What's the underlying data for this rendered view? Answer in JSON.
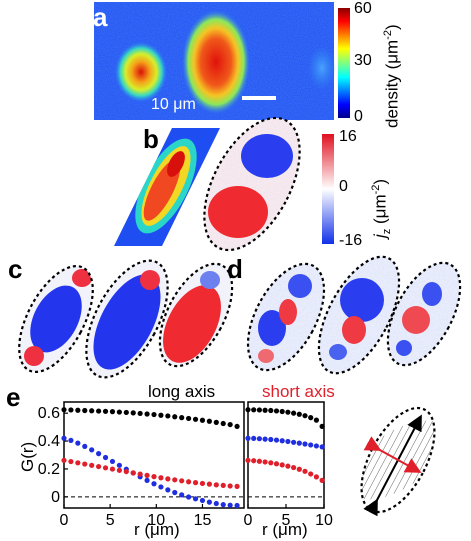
{
  "panels": {
    "a": {
      "label": "a",
      "scalebar": "10 μm",
      "colorbar": {
        "ticks": [
          "60",
          "30",
          "0"
        ],
        "label": "density (μm",
        "label_sup": "-2",
        "label_end": ")"
      }
    },
    "b": {
      "label": "b",
      "colorbar": {
        "ticks": [
          "16",
          "0",
          "-16"
        ],
        "label_main": "j",
        "label_sub": "z",
        "label_mid": " (μm",
        "label_sup": "-2",
        "label_end": ")"
      }
    },
    "c": {
      "label": "c"
    },
    "d": {
      "label": "d"
    },
    "e": {
      "label": "e"
    }
  },
  "chart_data": [
    {
      "type": "scatter",
      "title": "long axis",
      "xlabel": "r (μm)",
      "ylabel": "G(r)",
      "xlim": [
        0,
        19.5
      ],
      "ylim": [
        -0.08,
        0.68
      ],
      "xticks": [
        0,
        5,
        10,
        15
      ],
      "yticks": [
        0,
        0.2,
        0.4,
        0.6
      ],
      "ytick_labels": [
        "0",
        "0.2",
        "0.4",
        "0.6"
      ],
      "reference_line": {
        "y": 0,
        "style": "dashed"
      },
      "series": [
        {
          "color": "#000000",
          "x": [
            0,
            0.75,
            1.5,
            2.25,
            3,
            3.75,
            4.5,
            5.25,
            6,
            6.75,
            7.5,
            8.25,
            9,
            9.75,
            10.5,
            11.25,
            12,
            12.75,
            13.5,
            14.25,
            15,
            15.75,
            16.5,
            17.25,
            18,
            18.75
          ],
          "y": [
            0.625,
            0.623,
            0.621,
            0.619,
            0.617,
            0.615,
            0.613,
            0.611,
            0.608,
            0.605,
            0.602,
            0.598,
            0.594,
            0.59,
            0.585,
            0.58,
            0.574,
            0.568,
            0.562,
            0.556,
            0.549,
            0.542,
            0.534,
            0.526,
            0.518,
            0.505
          ]
        },
        {
          "color": "#1f2fe0",
          "x": [
            0,
            0.75,
            1.5,
            2.25,
            3,
            3.75,
            4.5,
            5.25,
            6,
            6.75,
            7.5,
            8.25,
            9,
            9.75,
            10.5,
            11.25,
            12,
            12.75,
            13.5,
            14.25,
            15,
            15.75,
            16.5,
            17.25,
            18,
            18.75
          ],
          "y": [
            0.42,
            0.405,
            0.385,
            0.362,
            0.337,
            0.31,
            0.282,
            0.254,
            0.226,
            0.198,
            0.171,
            0.144,
            0.118,
            0.094,
            0.071,
            0.05,
            0.031,
            0.014,
            -0.001,
            -0.014,
            -0.026,
            -0.038,
            -0.048,
            -0.056,
            -0.06,
            -0.062
          ]
        },
        {
          "color": "#e01f2a",
          "x": [
            0,
            0.75,
            1.5,
            2.25,
            3,
            3.75,
            4.5,
            5.25,
            6,
            6.75,
            7.5,
            8.25,
            9,
            9.75,
            10.5,
            11.25,
            12,
            12.75,
            13.5,
            14.25,
            15,
            15.75,
            16.5,
            17.25,
            18,
            18.75
          ],
          "y": [
            0.262,
            0.253,
            0.244,
            0.235,
            0.226,
            0.217,
            0.208,
            0.199,
            0.19,
            0.181,
            0.172,
            0.163,
            0.154,
            0.145,
            0.137,
            0.129,
            0.122,
            0.115,
            0.108,
            0.102,
            0.096,
            0.091,
            0.086,
            0.082,
            0.078,
            0.075
          ]
        }
      ]
    },
    {
      "type": "scatter",
      "title": "short axis",
      "title_color": "#e01f2a",
      "xlabel": "r (μm)",
      "xlim": [
        0,
        10
      ],
      "ylim": [
        -0.08,
        0.68
      ],
      "xticks": [
        0,
        5,
        10
      ],
      "reference_line": {
        "y": 0,
        "style": "dashed"
      },
      "series": [
        {
          "color": "#000000",
          "x": [
            0,
            0.75,
            1.5,
            2.25,
            3,
            3.75,
            4.5,
            5.25,
            6,
            6.75,
            7.5,
            8.25,
            9,
            9.75
          ],
          "y": [
            0.625,
            0.624,
            0.623,
            0.621,
            0.619,
            0.616,
            0.612,
            0.607,
            0.6,
            0.592,
            0.582,
            0.568,
            0.55,
            0.505
          ]
        },
        {
          "color": "#1f2fe0",
          "x": [
            0,
            0.75,
            1.5,
            2.25,
            3,
            3.75,
            4.5,
            5.25,
            6,
            6.75,
            7.5,
            8.25,
            9,
            9.75
          ],
          "y": [
            0.42,
            0.419,
            0.417,
            0.414,
            0.411,
            0.407,
            0.402,
            0.397,
            0.391,
            0.385,
            0.379,
            0.372,
            0.365,
            0.358
          ]
        },
        {
          "color": "#e01f2a",
          "x": [
            0,
            0.75,
            1.5,
            2.25,
            3,
            3.75,
            4.5,
            5.25,
            6,
            6.75,
            7.5,
            8.25,
            9,
            9.75
          ],
          "y": [
            0.262,
            0.259,
            0.255,
            0.25,
            0.244,
            0.237,
            0.229,
            0.22,
            0.21,
            0.198,
            0.183,
            0.164,
            0.143,
            0.118
          ]
        }
      ]
    }
  ]
}
